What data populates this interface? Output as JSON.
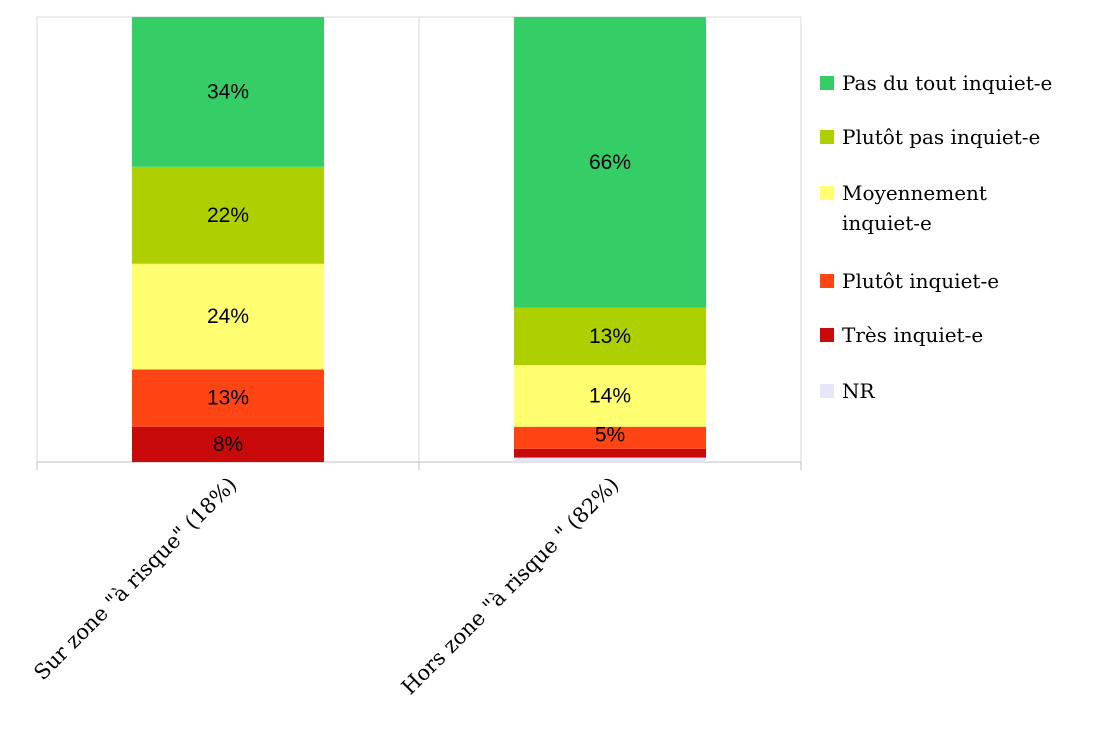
{
  "chart_data": {
    "type": "bar",
    "stacked": true,
    "categories": [
      "Sur zone \"à risque\" (18%)",
      "Hors zone \"à risque \" (82%)"
    ],
    "series": [
      {
        "name": "NR",
        "color": "#E6E6FA",
        "values": [
          0,
          1
        ],
        "labels": [
          "",
          ""
        ]
      },
      {
        "name": "Très inquiet-e",
        "color": "#C80A0A",
        "values": [
          8,
          2
        ],
        "labels": [
          "8%",
          ""
        ]
      },
      {
        "name": "Plutôt inquiet-e",
        "color": "#FF4513",
        "values": [
          13,
          5
        ],
        "labels": [
          "13%",
          "5%"
        ]
      },
      {
        "name": "Moyennement inquiet-e",
        "color": "#FFFF71",
        "values": [
          24,
          14
        ],
        "labels": [
          "24%",
          "14%"
        ]
      },
      {
        "name": "Plutôt pas inquiet-e",
        "color": "#AECF00",
        "values": [
          22,
          13
        ],
        "labels": [
          "22%",
          "13%"
        ]
      },
      {
        "name": "Pas du tout inquiet-e",
        "color": "#35CD66",
        "values": [
          34,
          66
        ],
        "labels": [
          "34%",
          "66%"
        ]
      }
    ],
    "ylim": [
      0,
      101
    ],
    "grid": false,
    "legend_position": "right"
  },
  "legend": [
    {
      "label": "Pas du tout inquiet-e",
      "color": "#35CD66"
    },
    {
      "label": "Plutôt pas inquiet-e",
      "color": "#AECF00"
    },
    {
      "label": "Moyennement inquiet-e",
      "color": "#FFFF71"
    },
    {
      "label": "Plutôt inquiet-e",
      "color": "#FF4513"
    },
    {
      "label": "Très inquiet-e",
      "color": "#C80A0A"
    },
    {
      "label": "NR",
      "color": "#E6E6FA"
    }
  ]
}
